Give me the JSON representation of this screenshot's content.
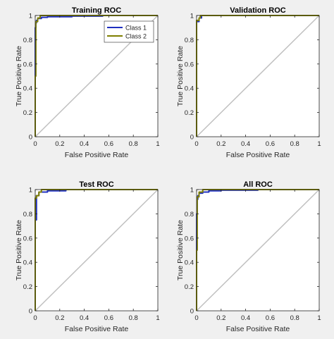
{
  "figure": {
    "background": "#f0f0f0",
    "axes_background": "#ffffff",
    "diagonal_color": "#c0c0c0",
    "class_colors": [
      "#1f2fbf",
      "#7f7f00"
    ]
  },
  "chart_data": [
    {
      "type": "line",
      "title": "Training ROC",
      "xlabel": "False Positive Rate",
      "ylabel": "True Positive Rate",
      "xlim": [
        0,
        1
      ],
      "ylim": [
        0,
        1
      ],
      "xticks": [
        "0",
        "0.2",
        "0.4",
        "0.6",
        "0.8",
        "1"
      ],
      "yticks": [
        "0",
        "0.2",
        "0.4",
        "0.6",
        "0.8",
        "1"
      ],
      "grid": false,
      "legend": {
        "placement": "top-right",
        "entries": [
          "Class 1",
          "Class 2"
        ]
      },
      "series": [
        {
          "name": "Class 1",
          "color": "#1f2fbf",
          "x": [
            0,
            0,
            0.005,
            0.005,
            0.01,
            0.01,
            0.02,
            0.02,
            0.05,
            0.05,
            0.1,
            0.1,
            0.3,
            0.3,
            0.55,
            0.55,
            1
          ],
          "y": [
            0,
            0.9,
            0.9,
            0.94,
            0.94,
            0.96,
            0.96,
            0.975,
            0.975,
            0.985,
            0.985,
            0.99,
            0.99,
            0.995,
            0.995,
            1,
            1
          ]
        },
        {
          "name": "Class 2",
          "color": "#7f7f00",
          "x": [
            0,
            0,
            0.005,
            0.005,
            0.02,
            0.02,
            0.04,
            0.04,
            1
          ],
          "y": [
            0,
            0.5,
            0.5,
            0.95,
            0.95,
            0.98,
            0.98,
            1,
            1
          ]
        }
      ],
      "reference": {
        "x": [
          0,
          1
        ],
        "y": [
          0,
          1
        ]
      }
    },
    {
      "type": "line",
      "title": "Validation ROC",
      "xlabel": "False Positive Rate",
      "ylabel": "True Positive Rate",
      "xlim": [
        0,
        1
      ],
      "ylim": [
        0,
        1
      ],
      "xticks": [
        "0",
        "0.2",
        "0.4",
        "0.6",
        "0.8",
        "1"
      ],
      "yticks": [
        "0",
        "0.2",
        "0.4",
        "0.6",
        "0.8",
        "1"
      ],
      "grid": false,
      "series": [
        {
          "name": "Class 1",
          "color": "#1f2fbf",
          "x": [
            0,
            0,
            0.02,
            0.02,
            0.04,
            0.04,
            1
          ],
          "y": [
            0,
            0.95,
            0.95,
            0.98,
            0.98,
            1,
            1
          ]
        },
        {
          "name": "Class 2",
          "color": "#7f7f00",
          "x": [
            0,
            0,
            0.02,
            0.02,
            0.03,
            0.03,
            1
          ],
          "y": [
            0,
            0.96,
            0.96,
            0.98,
            0.98,
            1,
            1
          ]
        }
      ],
      "reference": {
        "x": [
          0,
          1
        ],
        "y": [
          0,
          1
        ]
      }
    },
    {
      "type": "line",
      "title": "Test ROC",
      "xlabel": "False Positive Rate",
      "ylabel": "True Positive Rate",
      "xlim": [
        0,
        1
      ],
      "ylim": [
        0,
        1
      ],
      "xticks": [
        "0",
        "0.2",
        "0.4",
        "0.6",
        "0.8",
        "1"
      ],
      "yticks": [
        "0",
        "0.2",
        "0.4",
        "0.6",
        "0.8",
        "1"
      ],
      "grid": false,
      "series": [
        {
          "name": "Class 1",
          "color": "#1f2fbf",
          "x": [
            0,
            0,
            0.01,
            0.01,
            0.03,
            0.03,
            0.1,
            0.1,
            0.25,
            0.25,
            1
          ],
          "y": [
            0,
            0.75,
            0.75,
            0.95,
            0.95,
            0.98,
            0.98,
            0.99,
            0.99,
            1,
            1
          ]
        },
        {
          "name": "Class 2",
          "color": "#7f7f00",
          "x": [
            0,
            0,
            0.01,
            0.01,
            0.03,
            0.03,
            0.05,
            0.05,
            1
          ],
          "y": [
            0,
            0.93,
            0.93,
            0.95,
            0.95,
            0.98,
            0.98,
            1,
            1
          ]
        }
      ],
      "reference": {
        "x": [
          0,
          1
        ],
        "y": [
          0,
          1
        ]
      }
    },
    {
      "type": "line",
      "title": "All ROC",
      "xlabel": "False Positive Rate",
      "ylabel": "True Positive Rate",
      "xlim": [
        0,
        1
      ],
      "ylim": [
        0,
        1
      ],
      "xticks": [
        "0",
        "0.2",
        "0.4",
        "0.6",
        "0.8",
        "1"
      ],
      "yticks": [
        "0",
        "0.2",
        "0.4",
        "0.6",
        "0.8",
        "1"
      ],
      "grid": false,
      "series": [
        {
          "name": "Class 1",
          "color": "#1f2fbf",
          "x": [
            0,
            0,
            0.005,
            0.005,
            0.01,
            0.01,
            0.02,
            0.02,
            0.05,
            0.05,
            0.1,
            0.1,
            0.2,
            0.2,
            0.5,
            0.5,
            1
          ],
          "y": [
            0,
            0.8,
            0.8,
            0.92,
            0.92,
            0.95,
            0.95,
            0.97,
            0.97,
            0.98,
            0.98,
            0.99,
            0.99,
            0.995,
            0.995,
            1,
            1
          ]
        },
        {
          "name": "Class 2",
          "color": "#7f7f00",
          "x": [
            0,
            0,
            0.005,
            0.005,
            0.02,
            0.02,
            0.05,
            0.05,
            1
          ],
          "y": [
            0,
            0.5,
            0.5,
            0.94,
            0.94,
            0.98,
            0.98,
            1,
            1
          ]
        }
      ],
      "reference": {
        "x": [
          0,
          1
        ],
        "y": [
          0,
          1
        ]
      }
    }
  ]
}
